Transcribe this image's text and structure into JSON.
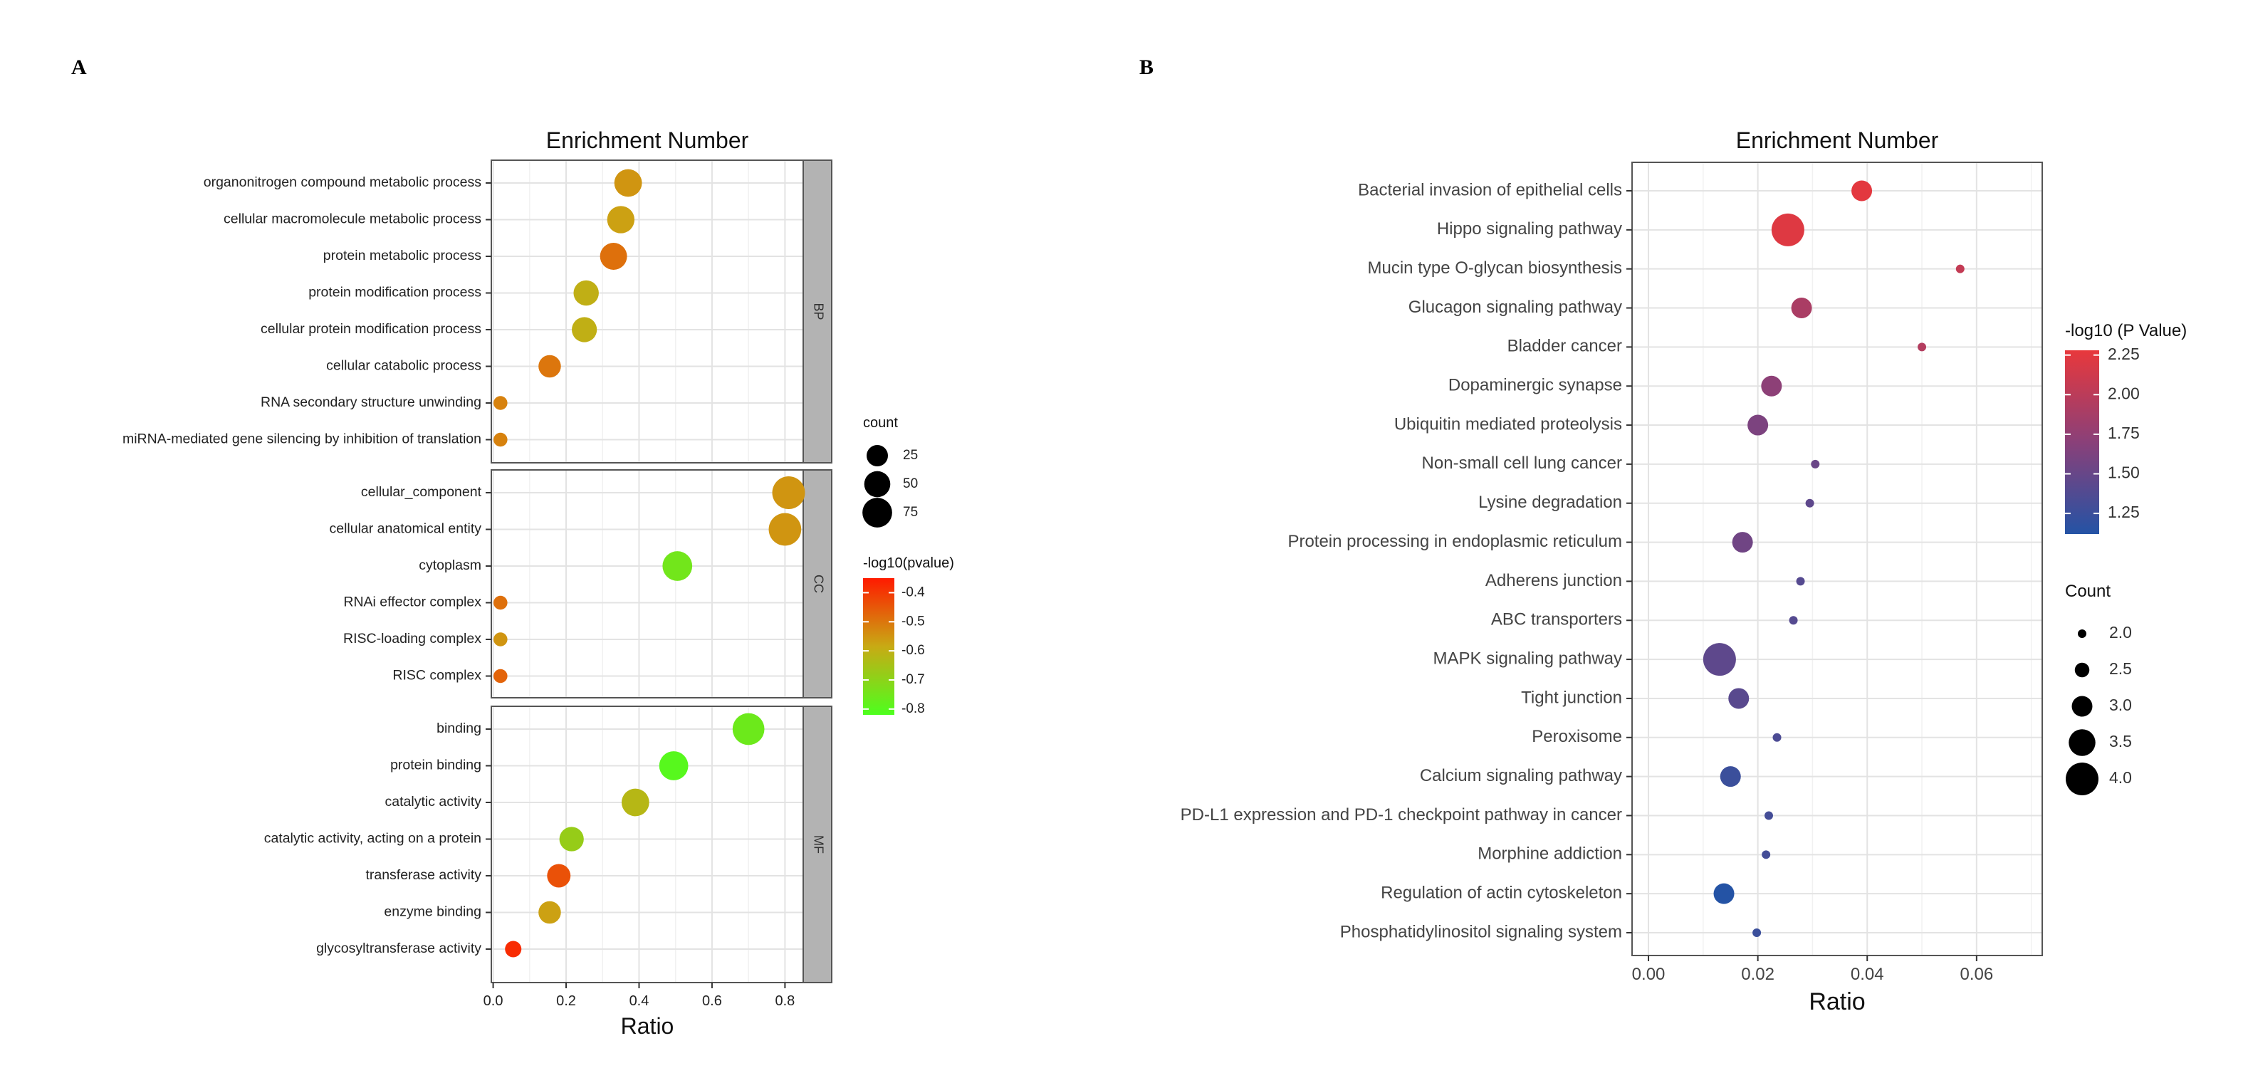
{
  "panels": {
    "a": {
      "letter": "A"
    },
    "b": {
      "letter": "B"
    }
  },
  "chart_data": [
    {
      "type": "scatter",
      "title": "Enrichment Number",
      "xlabel": "Ratio",
      "ylabel": "",
      "xlim": [
        -0.005,
        0.85
      ],
      "xticks": [
        0.0,
        0.2,
        0.4,
        0.6,
        0.8
      ],
      "xtick_labels": [
        "0.0",
        "0.2",
        "0.4",
        "0.6",
        "0.8"
      ],
      "facets": [
        {
          "name": "BP",
          "terms": [
            {
              "label": "organonitrogen compound metabolic process",
              "ratio": 0.37,
              "count": 60,
              "neglog10p": -0.55
            },
            {
              "label": "cellular macromolecule metabolic process",
              "ratio": 0.35,
              "count": 58,
              "neglog10p": -0.57
            },
            {
              "label": "protein metabolic process",
              "ratio": 0.33,
              "count": 56,
              "neglog10p": -0.49
            },
            {
              "label": "protein modification process",
              "ratio": 0.255,
              "count": 45,
              "neglog10p": -0.6
            },
            {
              "label": "cellular protein modification process",
              "ratio": 0.25,
              "count": 44,
              "neglog10p": -0.6
            },
            {
              "label": "cellular catabolic process",
              "ratio": 0.155,
              "count": 30,
              "neglog10p": -0.5
            },
            {
              "label": "RNA secondary structure unwinding",
              "ratio": 0.02,
              "count": 3,
              "neglog10p": -0.52
            },
            {
              "label": "miRNA-mediated gene silencing by inhibition of translation",
              "ratio": 0.02,
              "count": 3,
              "neglog10p": -0.52
            }
          ]
        },
        {
          "name": "CC",
          "terms": [
            {
              "label": "cellular_component",
              "ratio": 0.81,
              "count": 100,
              "neglog10p": -0.55
            },
            {
              "label": "cellular anatomical entity",
              "ratio": 0.8,
              "count": 98,
              "neglog10p": -0.55
            },
            {
              "label": "cytoplasm",
              "ratio": 0.505,
              "count": 75,
              "neglog10p": -0.75
            },
            {
              "label": "RNAi effector complex",
              "ratio": 0.02,
              "count": 3,
              "neglog10p": -0.49
            },
            {
              "label": "RISC-loading complex",
              "ratio": 0.02,
              "count": 3,
              "neglog10p": -0.55
            },
            {
              "label": "RISC complex",
              "ratio": 0.02,
              "count": 3,
              "neglog10p": -0.47
            }
          ]
        },
        {
          "name": "MF",
          "terms": [
            {
              "label": "binding",
              "ratio": 0.7,
              "count": 92,
              "neglog10p": -0.76
            },
            {
              "label": "protein binding",
              "ratio": 0.495,
              "count": 70,
              "neglog10p": -0.8
            },
            {
              "label": "catalytic activity",
              "ratio": 0.39,
              "count": 60,
              "neglog10p": -0.62
            },
            {
              "label": "catalytic activity, acting on a protein",
              "ratio": 0.215,
              "count": 40,
              "neglog10p": -0.68
            },
            {
              "label": "transferase activity",
              "ratio": 0.18,
              "count": 35,
              "neglog10p": -0.44
            },
            {
              "label": "enzyme binding",
              "ratio": 0.155,
              "count": 30,
              "neglog10p": -0.57
            },
            {
              "label": "glycosyltransferase activity",
              "ratio": 0.055,
              "count": 8,
              "neglog10p": -0.38
            }
          ]
        }
      ],
      "legend_count": {
        "title": "count",
        "entries": [
          25,
          50,
          75
        ]
      },
      "legend_color": {
        "title": "-log10(pvalue)",
        "ticks": [
          -0.4,
          -0.5,
          -0.6,
          -0.7,
          -0.8
        ],
        "tick_labels": [
          "-0.4",
          "-0.5",
          "-0.6",
          "-0.7",
          "-0.8"
        ],
        "range": [
          -0.82,
          -0.35
        ],
        "low_color": "#4dff1e",
        "mid_color": "#c8aa14",
        "high_color": "#ff1a00"
      },
      "legend_placement": "right"
    },
    {
      "type": "scatter",
      "title": "Enrichment Number",
      "xlabel": "Ratio",
      "ylabel": "",
      "xlim": [
        -0.003,
        0.072
      ],
      "xticks": [
        0.0,
        0.02,
        0.04,
        0.06
      ],
      "xtick_labels": [
        "0.00",
        "0.02",
        "0.04",
        "0.06"
      ],
      "terms": [
        {
          "label": "Bacterial invasion of epithelial cells",
          "ratio": 0.039,
          "count": 3,
          "neglog10p": 2.25
        },
        {
          "label": "Hippo signaling pathway",
          "ratio": 0.0255,
          "count": 4,
          "neglog10p": 2.22
        },
        {
          "label": "Mucin type O-glycan biosynthesis",
          "ratio": 0.057,
          "count": 2,
          "neglog10p": 2.05
        },
        {
          "label": "Glucagon signaling pathway",
          "ratio": 0.028,
          "count": 3,
          "neglog10p": 1.9
        },
        {
          "label": "Bladder cancer",
          "ratio": 0.05,
          "count": 2,
          "neglog10p": 1.95
        },
        {
          "label": "Dopaminergic synapse",
          "ratio": 0.0225,
          "count": 3,
          "neglog10p": 1.72
        },
        {
          "label": "Ubiquitin mediated proteolysis",
          "ratio": 0.02,
          "count": 3,
          "neglog10p": 1.62
        },
        {
          "label": "Non-small cell lung cancer",
          "ratio": 0.0305,
          "count": 2,
          "neglog10p": 1.52
        },
        {
          "label": "Lysine degradation",
          "ratio": 0.0295,
          "count": 2,
          "neglog10p": 1.45
        },
        {
          "label": "Protein processing in endoplasmic reticulum",
          "ratio": 0.0172,
          "count": 3,
          "neglog10p": 1.55
        },
        {
          "label": "Adherens junction",
          "ratio": 0.0278,
          "count": 2,
          "neglog10p": 1.4
        },
        {
          "label": "ABC transporters",
          "ratio": 0.0265,
          "count": 2,
          "neglog10p": 1.4
        },
        {
          "label": "MAPK signaling pathway",
          "ratio": 0.013,
          "count": 4,
          "neglog10p": 1.45
        },
        {
          "label": "Tight junction",
          "ratio": 0.0165,
          "count": 3,
          "neglog10p": 1.42
        },
        {
          "label": "Peroxisome",
          "ratio": 0.0235,
          "count": 2,
          "neglog10p": 1.35
        },
        {
          "label": "Calcium signaling pathway",
          "ratio": 0.015,
          "count": 3,
          "neglog10p": 1.25
        },
        {
          "label": "PD-L1 expression and PD-1 checkpoint pathway in cancer",
          "ratio": 0.022,
          "count": 2,
          "neglog10p": 1.3
        },
        {
          "label": "Morphine addiction",
          "ratio": 0.0215,
          "count": 2,
          "neglog10p": 1.3
        },
        {
          "label": "Regulation of actin cytoskeleton",
          "ratio": 0.0138,
          "count": 3,
          "neglog10p": 1.12
        },
        {
          "label": "Phosphatidylinositol signaling system",
          "ratio": 0.0198,
          "count": 2,
          "neglog10p": 1.25
        }
      ],
      "legend_color": {
        "title": "-log10 (P Value)",
        "ticks": [
          2.25,
          2.0,
          1.75,
          1.5,
          1.25
        ],
        "tick_labels": [
          "2.25",
          "2.00",
          "1.75",
          "1.50",
          "1.25"
        ],
        "range": [
          1.12,
          2.28
        ],
        "low_color": "#2453a5",
        "high_color": "#e8383c"
      },
      "legend_count": {
        "title": "Count",
        "entries": [
          2.0,
          2.5,
          3.0,
          3.5,
          4.0
        ],
        "entry_labels": [
          "2.0",
          "2.5",
          "3.0",
          "3.5",
          "4.0"
        ]
      },
      "legend_placement": "right"
    }
  ]
}
